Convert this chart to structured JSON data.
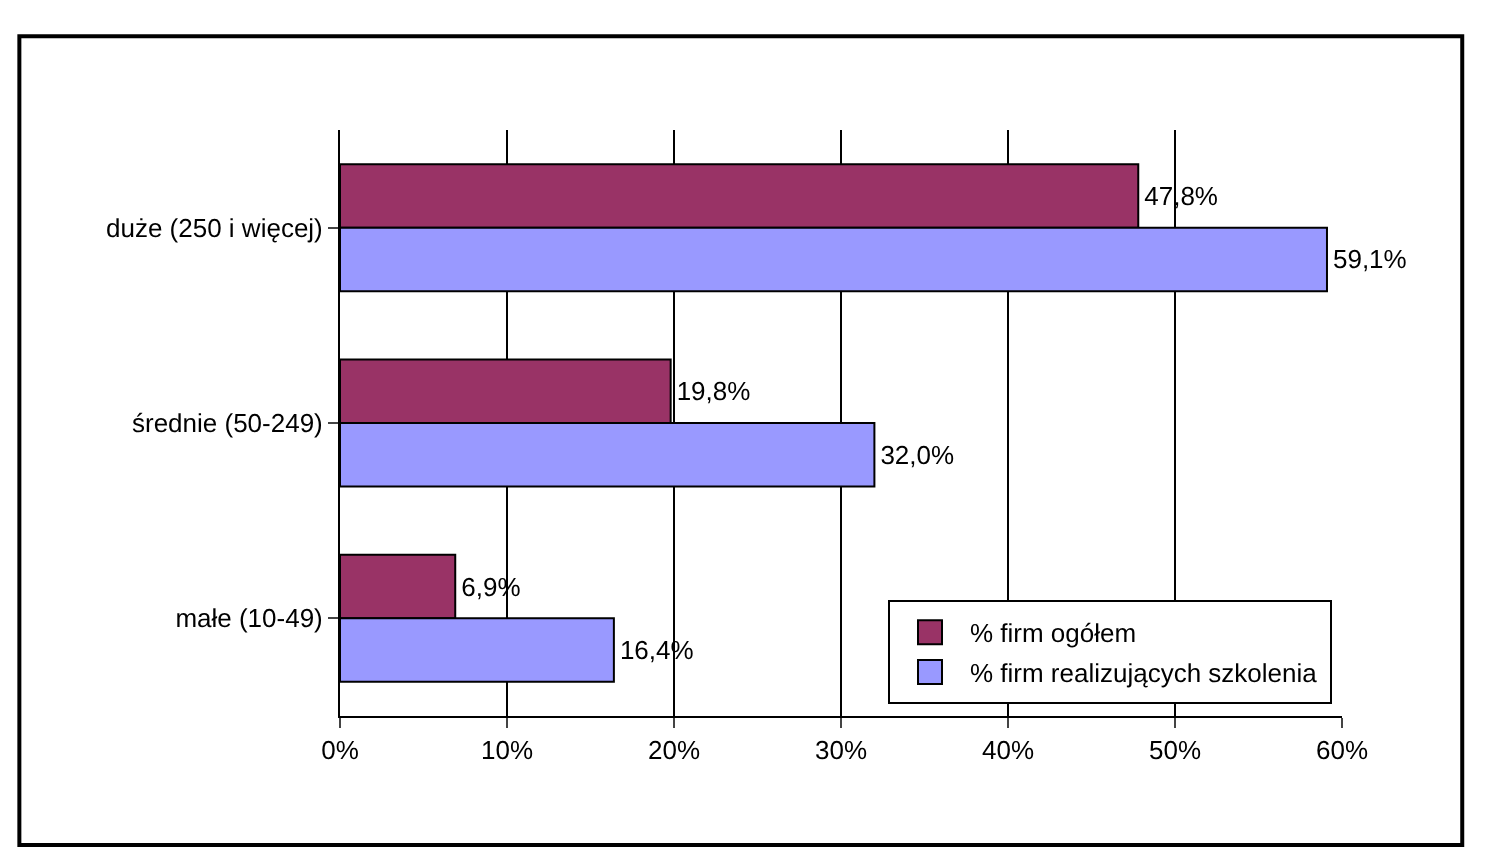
{
  "chart_data": {
    "type": "bar",
    "orientation": "horizontal",
    "categories": [
      "duże (250 i więcej)",
      "średnie (50-249)",
      "małe (10-49)"
    ],
    "series": [
      {
        "name": "% firm ogółem",
        "color": "#993366",
        "values": [
          47.8,
          19.8,
          6.9
        ],
        "value_labels": [
          "47,8%",
          "19,8%",
          "6,9%"
        ]
      },
      {
        "name": "% firm realizujących szkolenia",
        "color": "#9999ff",
        "values": [
          59.1,
          32.0,
          16.4
        ],
        "value_labels": [
          "59,1%",
          "32,0%",
          "16,4%"
        ]
      }
    ],
    "xlim": [
      0,
      60
    ],
    "xticks": [
      {
        "value": 0,
        "label": "0%"
      },
      {
        "value": 10,
        "label": "10%"
      },
      {
        "value": 20,
        "label": "20%"
      },
      {
        "value": 30,
        "label": "30%"
      },
      {
        "value": 40,
        "label": "40%"
      },
      {
        "value": 50,
        "label": "50%"
      },
      {
        "value": 60,
        "label": "60%"
      }
    ],
    "grid": "x",
    "legend": "bottom right"
  }
}
